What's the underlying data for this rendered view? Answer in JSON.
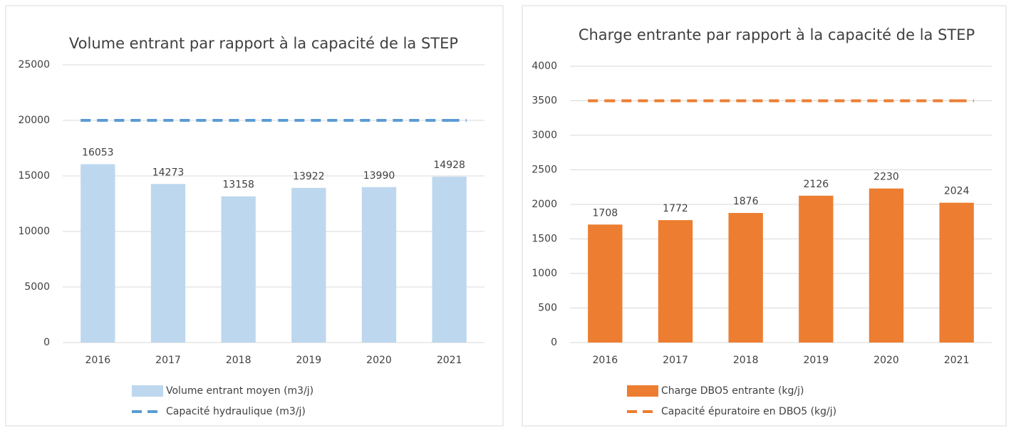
{
  "chart_data": [
    {
      "type": "bar",
      "title": "Volume entrant par rapport à la capacité de la STEP",
      "categories": [
        "2016",
        "2017",
        "2018",
        "2019",
        "2020",
        "2021"
      ],
      "series": [
        {
          "name": "Volume entrant moyen (m3/j)",
          "type": "bar",
          "color": "#bdd7ee",
          "values": [
            16053,
            14273,
            13158,
            13922,
            13990,
            14928
          ]
        },
        {
          "name": "Capacité hydraulique (m3/j)",
          "type": "line",
          "line_style": "dashed",
          "color": "#5b9bd5",
          "values": [
            20000,
            20000,
            20000,
            20000,
            20000,
            20000
          ]
        }
      ],
      "ylim": [
        0,
        25000
      ],
      "yticks": [
        0,
        5000,
        10000,
        15000,
        20000,
        25000
      ],
      "grid": true,
      "legend": "bottom"
    },
    {
      "type": "bar",
      "title": "Charge entrante par rapport à la capacité de la STEP",
      "categories": [
        "2016",
        "2017",
        "2018",
        "2019",
        "2020",
        "2021"
      ],
      "series": [
        {
          "name": "Charge DBO5 entrante (kg/j)",
          "type": "bar",
          "color": "#ed7d31",
          "values": [
            1708,
            1772,
            1876,
            2126,
            2230,
            2024
          ]
        },
        {
          "name": "Capacité épuratoire en DBO5 (kg/j)",
          "type": "line",
          "line_style": "dashed",
          "color": "#ed7d31",
          "values": [
            3500,
            3500,
            3500,
            3500,
            3500,
            3500
          ]
        }
      ],
      "ylim": [
        0,
        4000
      ],
      "yticks": [
        0,
        500,
        1000,
        1500,
        2000,
        2500,
        3000,
        3500,
        4000
      ],
      "grid": true,
      "legend": "bottom"
    }
  ]
}
